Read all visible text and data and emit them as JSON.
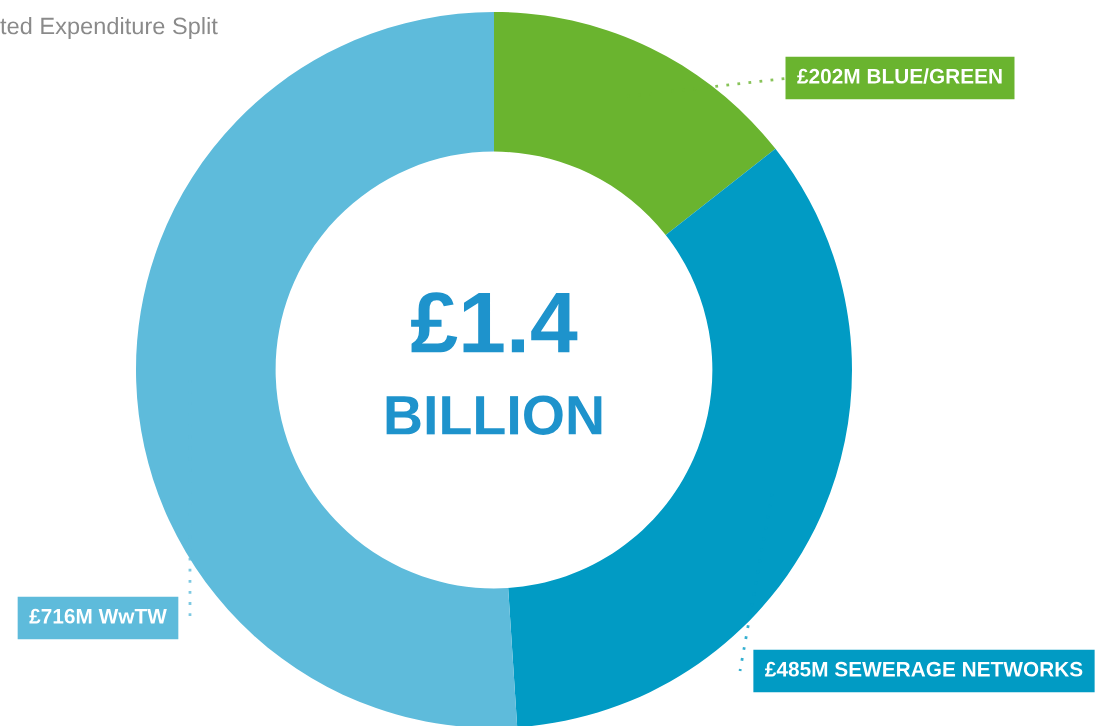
{
  "chart_data": {
    "type": "donut",
    "title": "ted Expenditure Split",
    "categories": [
      "BLUE/GREEN",
      "SEWERAGE NETWORKS",
      "WwTW"
    ],
    "values": [
      202,
      485,
      716
    ],
    "value_labels": [
      "£202M",
      "£485M",
      "£716M"
    ],
    "colors": [
      "#6ab42f",
      "#019bc4",
      "#5ebbdb"
    ],
    "annotations": [
      "£1.4",
      "BILLION"
    ]
  }
}
